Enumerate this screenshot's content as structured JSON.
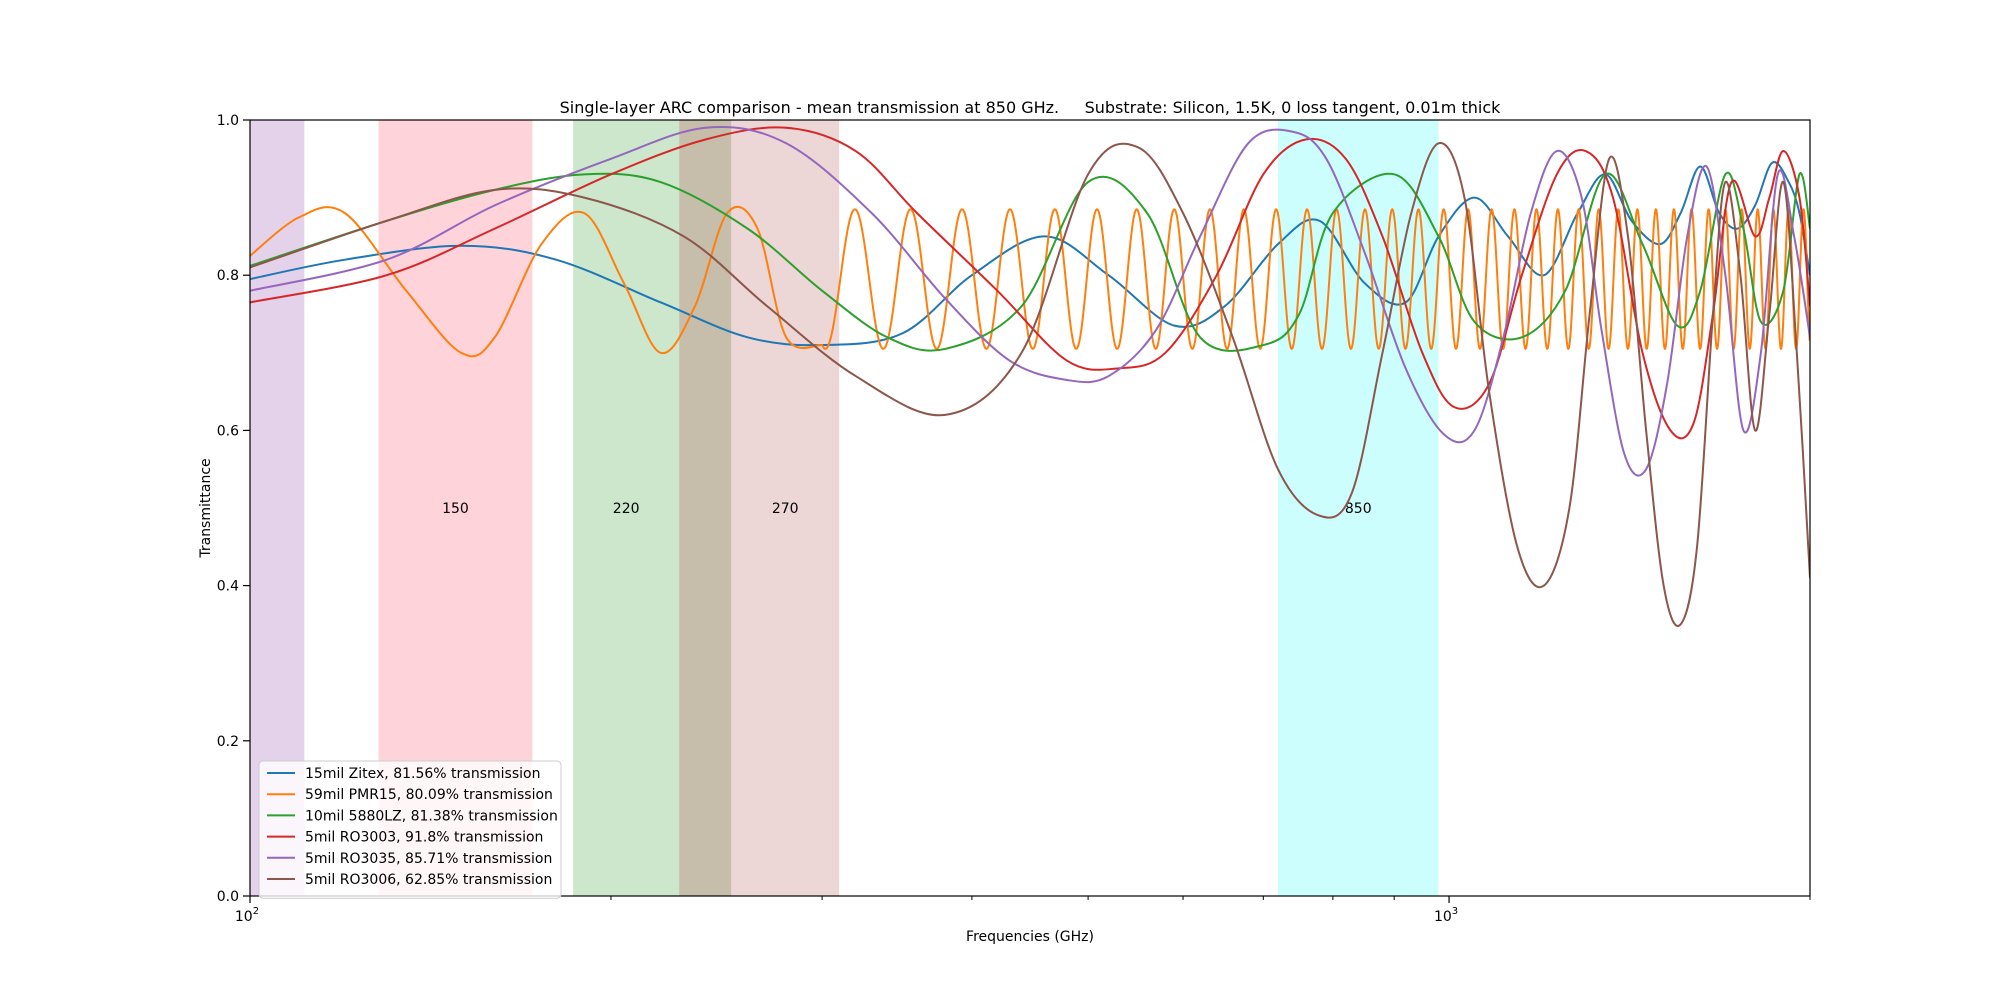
{
  "chart_data": {
    "type": "line",
    "title": "Single-layer ARC comparison - mean transmission at 850 GHz.     Substrate: Silicon, 1.5K, 0 loss tangent, 0.01m thick",
    "xlabel": "Frequencies (GHz)",
    "ylabel": "Transmittance",
    "xscale": "log",
    "xlim": [
      100,
      2000
    ],
    "ylim": [
      0,
      1
    ],
    "x_major_ticks": [
      {
        "value": 100,
        "base": "10",
        "exp": "2"
      },
      {
        "value": 1000,
        "base": "10",
        "exp": "3"
      }
    ],
    "y_ticks": [
      {
        "value": 0,
        "label": "0.0"
      },
      {
        "value": 0.2,
        "label": "0.2"
      },
      {
        "value": 0.4,
        "label": "0.4"
      },
      {
        "value": 0.6,
        "label": "0.6"
      },
      {
        "value": 0.8,
        "label": "0.8"
      },
      {
        "value": 1,
        "label": "1.0"
      }
    ],
    "legend_position": "lower-left",
    "bands": [
      {
        "label": "",
        "from": 100,
        "to": 111,
        "color": "#c39bd3",
        "opacity": 0.45
      },
      {
        "label": "150",
        "from": 128,
        "to": 172,
        "color": "#ffb6c1",
        "opacity": 0.6
      },
      {
        "label": "220",
        "from": 186,
        "to": 228,
        "color": "#8fc98f",
        "opacity": 0.45
      },
      {
        "label": "",
        "from": 228,
        "to": 252,
        "color": "#a89b7e",
        "opacity": 0.65
      },
      {
        "label": "270",
        "from": 252,
        "to": 310,
        "color": "#d4a5a5",
        "opacity": 0.45
      },
      {
        "label": "850",
        "from": 720,
        "to": 980,
        "color": "#7ffcfc",
        "opacity": 0.4
      }
    ],
    "band_label_y": 0.5,
    "series": [
      {
        "name": "15mil Zitex, 81.56% transmission",
        "color": "#1f77b4",
        "x": [
          100,
          120,
          150,
          180,
          220,
          260,
          300,
          350,
          400,
          460,
          520,
          590,
          650,
          720,
          780,
          850,
          920,
          980,
          1050,
          1120,
          1200,
          1280,
          1350,
          1420,
          1500,
          1560,
          1620,
          1680,
          1740,
          1800,
          1860,
          1920,
          1960,
          2000
        ],
        "y": [
          0.795,
          0.82,
          0.838,
          0.82,
          0.765,
          0.72,
          0.71,
          0.725,
          0.8,
          0.85,
          0.8,
          0.735,
          0.76,
          0.84,
          0.87,
          0.79,
          0.765,
          0.85,
          0.9,
          0.85,
          0.8,
          0.88,
          0.93,
          0.87,
          0.84,
          0.88,
          0.94,
          0.88,
          0.86,
          0.89,
          0.945,
          0.92,
          0.88,
          0.8
        ]
      },
      {
        "name": "59mil PMR15, 80.09% transmission",
        "color": "#ff7f0e",
        "x": [
          100,
          110,
          120,
          135,
          150,
          160,
          175,
          190,
          205,
          220,
          235,
          250,
          265,
          280,
          300
        ],
        "y": [
          0.825,
          0.875,
          0.88,
          0.78,
          0.7,
          0.72,
          0.84,
          0.88,
          0.79,
          0.7,
          0.76,
          0.88,
          0.86,
          0.72,
          0.71
        ],
        "osc_from": 300,
        "osc_to": 2000,
        "osc_start_period": 35,
        "osc_min": 0.705,
        "osc_max": 0.885
      },
      {
        "name": "10mil 5880LZ, 81.38% transmission",
        "color": "#2ca02c",
        "x": [
          100,
          130,
          160,
          190,
          220,
          260,
          300,
          340,
          380,
          440,
          500,
          560,
          620,
          700,
          750,
          800,
          900,
          980,
          1050,
          1150,
          1250,
          1350,
          1450,
          1550,
          1620,
          1700,
          1760,
          1820,
          1900,
          1960,
          2000
        ],
        "y": [
          0.812,
          0.87,
          0.91,
          0.93,
          0.92,
          0.86,
          0.78,
          0.72,
          0.705,
          0.76,
          0.92,
          0.88,
          0.72,
          0.71,
          0.75,
          0.88,
          0.93,
          0.85,
          0.74,
          0.72,
          0.78,
          0.93,
          0.84,
          0.735,
          0.78,
          0.93,
          0.86,
          0.74,
          0.78,
          0.93,
          0.86
        ]
      },
      {
        "name": "5mil RO3003, 91.8% transmission",
        "color": "#d62728",
        "x": [
          100,
          130,
          160,
          200,
          240,
          280,
          320,
          360,
          420,
          480,
          530,
          580,
          640,
          700,
          760,
          820,
          880,
          950,
          1010,
          1080,
          1150,
          1230,
          1300,
          1370,
          1450,
          1530,
          1600,
          1660,
          1720,
          1800,
          1850,
          1900,
          1960,
          2000
        ],
        "y": [
          0.765,
          0.8,
          0.86,
          0.93,
          0.975,
          0.99,
          0.96,
          0.88,
          0.78,
          0.69,
          0.68,
          0.7,
          0.8,
          0.93,
          0.975,
          0.95,
          0.85,
          0.7,
          0.63,
          0.66,
          0.8,
          0.93,
          0.96,
          0.9,
          0.7,
          0.6,
          0.61,
          0.75,
          0.92,
          0.85,
          0.9,
          0.96,
          0.9,
          0.76
        ]
      },
      {
        "name": "5mil RO3035, 85.71% transmission",
        "color": "#9467bd",
        "x": [
          100,
          130,
          160,
          200,
          240,
          280,
          330,
          380,
          430,
          480,
          520,
          570,
          620,
          680,
          740,
          790,
          850,
          920,
          990,
          1050,
          1110,
          1170,
          1230,
          1290,
          1340,
          1400,
          1460,
          1520,
          1580,
          1640,
          1700,
          1760,
          1820,
          1880,
          1940,
          2000
        ],
        "y": [
          0.78,
          0.82,
          0.89,
          0.95,
          0.99,
          0.97,
          0.88,
          0.77,
          0.69,
          0.665,
          0.67,
          0.73,
          0.85,
          0.97,
          0.985,
          0.95,
          0.83,
          0.68,
          0.595,
          0.6,
          0.72,
          0.88,
          0.96,
          0.9,
          0.73,
          0.57,
          0.55,
          0.66,
          0.85,
          0.94,
          0.8,
          0.6,
          0.7,
          0.93,
          0.85,
          0.72
        ]
      },
      {
        "name": "5mil RO3006, 62.85% transmission",
        "color": "#8c564b",
        "x": [
          100,
          130,
          160,
          190,
          230,
          270,
          320,
          380,
          440,
          500,
          550,
          600,
          660,
          720,
          780,
          830,
          880,
          930,
          980,
          1030,
          1080,
          1140,
          1200,
          1260,
          1310,
          1360,
          1410,
          1460,
          1510,
          1560,
          1610,
          1660,
          1700,
          1750,
          1800,
          1850,
          1900,
          1950,
          2000
        ],
        "y": [
          0.81,
          0.87,
          0.91,
          0.9,
          0.85,
          0.76,
          0.67,
          0.62,
          0.7,
          0.93,
          0.965,
          0.88,
          0.72,
          0.55,
          0.49,
          0.52,
          0.7,
          0.88,
          0.97,
          0.9,
          0.65,
          0.45,
          0.4,
          0.5,
          0.75,
          0.95,
          0.85,
          0.6,
          0.4,
          0.35,
          0.45,
          0.75,
          0.92,
          0.8,
          0.6,
          0.75,
          0.92,
          0.7,
          0.41
        ]
      }
    ]
  }
}
